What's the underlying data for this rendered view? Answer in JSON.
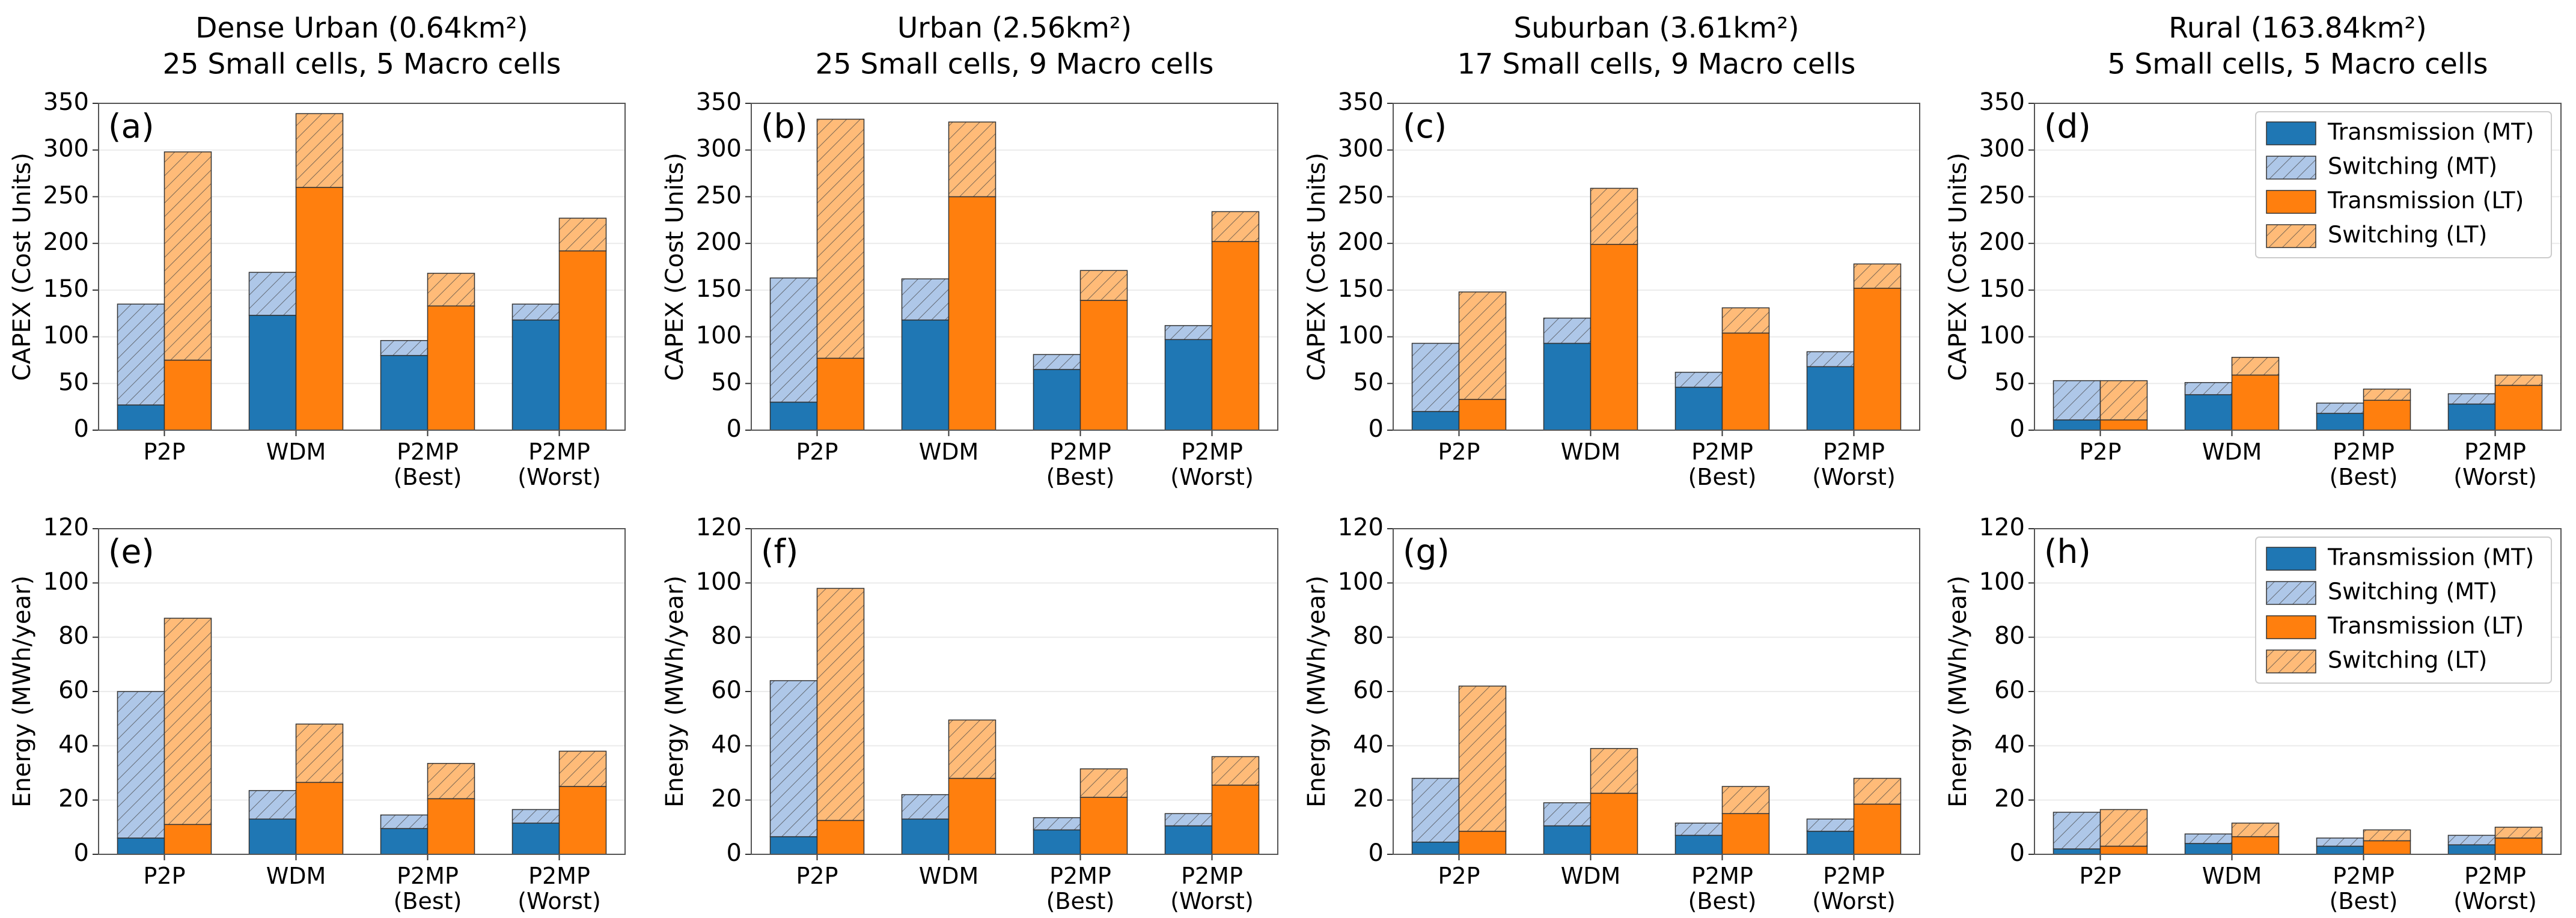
{
  "chart_data": [
    {
      "type": "bar",
      "title": "Dense Urban (0.64km²)",
      "subtitle": "25 Small cells, 5 Macro cells",
      "panel": "(a)",
      "ylabel": "CAPEX (Cost Units)",
      "categories": [
        "P2P",
        "WDM",
        "P2MP (Best)",
        "P2MP (Worst)"
      ],
      "ylim": [
        0,
        350
      ],
      "yticks": [
        0,
        50,
        100,
        150,
        200,
        250,
        300,
        350
      ],
      "grid": true,
      "series": [
        {
          "color": "#1f77b4",
          "hatch": false,
          "values": [
            27,
            123,
            80,
            118
          ]
        },
        {
          "color": "#aec7e8",
          "hatch": true,
          "values": [
            108,
            46,
            16,
            17
          ]
        },
        {
          "color": "#ff7f0e",
          "hatch": false,
          "values": [
            75,
            260,
            133,
            192
          ]
        },
        {
          "color": "#ffbb78",
          "hatch": true,
          "values": [
            223,
            79,
            35,
            35
          ]
        }
      ]
    },
    {
      "type": "bar",
      "title": "Urban (2.56km²)",
      "subtitle": "25 Small cells, 9 Macro cells",
      "panel": "(b)",
      "ylabel": "CAPEX (Cost Units)",
      "categories": [
        "P2P",
        "WDM",
        "P2MP (Best)",
        "P2MP (Worst)"
      ],
      "ylim": [
        0,
        350
      ],
      "yticks": [
        0,
        50,
        100,
        150,
        200,
        250,
        300,
        350
      ],
      "grid": true,
      "series": [
        {
          "color": "#1f77b4",
          "hatch": false,
          "values": [
            30,
            118,
            65,
            97
          ]
        },
        {
          "color": "#aec7e8",
          "hatch": true,
          "values": [
            133,
            44,
            16,
            15
          ]
        },
        {
          "color": "#ff7f0e",
          "hatch": false,
          "values": [
            77,
            250,
            139,
            202
          ]
        },
        {
          "color": "#ffbb78",
          "hatch": true,
          "values": [
            256,
            80,
            32,
            32
          ]
        }
      ]
    },
    {
      "type": "bar",
      "title": "Suburban (3.61km²)",
      "subtitle": "17 Small cells, 9 Macro cells",
      "panel": "(c)",
      "ylabel": "CAPEX (Cost Units)",
      "categories": [
        "P2P",
        "WDM",
        "P2MP (Best)",
        "P2MP (Worst)"
      ],
      "ylim": [
        0,
        350
      ],
      "yticks": [
        0,
        50,
        100,
        150,
        200,
        250,
        300,
        350
      ],
      "grid": true,
      "series": [
        {
          "color": "#1f77b4",
          "hatch": false,
          "values": [
            20,
            93,
            46,
            68
          ]
        },
        {
          "color": "#aec7e8",
          "hatch": true,
          "values": [
            73,
            27,
            16,
            16
          ]
        },
        {
          "color": "#ff7f0e",
          "hatch": false,
          "values": [
            33,
            199,
            104,
            152
          ]
        },
        {
          "color": "#ffbb78",
          "hatch": true,
          "values": [
            115,
            60,
            27,
            26
          ]
        }
      ]
    },
    {
      "type": "bar",
      "title": "Rural (163.84km²)",
      "subtitle": "5 Small cells, 5 Macro cells",
      "panel": "(d)",
      "ylabel": "CAPEX (Cost Units)",
      "categories": [
        "P2P",
        "WDM",
        "P2MP (Best)",
        "P2MP (Worst)"
      ],
      "ylim": [
        0,
        350
      ],
      "yticks": [
        0,
        50,
        100,
        150,
        200,
        250,
        300,
        350
      ],
      "grid": true,
      "legend": "upper right",
      "series": [
        {
          "name": "Transmission (MT)",
          "color": "#1f77b4",
          "hatch": false,
          "values": [
            11,
            38,
            18,
            28
          ]
        },
        {
          "name": "Switching (MT)",
          "color": "#aec7e8",
          "hatch": true,
          "values": [
            42,
            13,
            11,
            11
          ]
        },
        {
          "name": "Transmission (LT)",
          "color": "#ff7f0e",
          "hatch": false,
          "values": [
            11,
            59,
            32,
            48
          ]
        },
        {
          "name": "Switching (LT)",
          "color": "#ffbb78",
          "hatch": true,
          "values": [
            42,
            19,
            12,
            11
          ]
        }
      ]
    },
    {
      "type": "bar",
      "panel": "(e)",
      "ylabel": "Energy (MWh/year)",
      "categories": [
        "P2P",
        "WDM",
        "P2MP (Best)",
        "P2MP (Worst)"
      ],
      "ylim": [
        0,
        120
      ],
      "yticks": [
        0,
        20,
        40,
        60,
        80,
        100,
        120
      ],
      "grid": true,
      "series": [
        {
          "color": "#1f77b4",
          "hatch": false,
          "values": [
            6,
            13,
            9.5,
            11.5
          ]
        },
        {
          "color": "#aec7e8",
          "hatch": true,
          "values": [
            54,
            10.5,
            5,
            5
          ]
        },
        {
          "color": "#ff7f0e",
          "hatch": false,
          "values": [
            11,
            26.5,
            20.5,
            25
          ]
        },
        {
          "color": "#ffbb78",
          "hatch": true,
          "values": [
            76,
            21.5,
            13,
            13
          ]
        }
      ]
    },
    {
      "type": "bar",
      "panel": "(f)",
      "ylabel": "Energy (MWh/year)",
      "categories": [
        "P2P",
        "WDM",
        "P2MP (Best)",
        "P2MP (Worst)"
      ],
      "ylim": [
        0,
        120
      ],
      "yticks": [
        0,
        20,
        40,
        60,
        80,
        100,
        120
      ],
      "grid": true,
      "series": [
        {
          "color": "#1f77b4",
          "hatch": false,
          "values": [
            6.5,
            13,
            9,
            10.5
          ]
        },
        {
          "color": "#aec7e8",
          "hatch": true,
          "values": [
            57.5,
            9,
            4.5,
            4.5
          ]
        },
        {
          "color": "#ff7f0e",
          "hatch": false,
          "values": [
            12.5,
            28,
            21,
            25.5
          ]
        },
        {
          "color": "#ffbb78",
          "hatch": true,
          "values": [
            85.5,
            21.5,
            10.5,
            10.5
          ]
        }
      ]
    },
    {
      "type": "bar",
      "panel": "(g)",
      "ylabel": "Energy (MWh/year)",
      "categories": [
        "P2P",
        "WDM",
        "P2MP (Best)",
        "P2MP (Worst)"
      ],
      "ylim": [
        0,
        120
      ],
      "yticks": [
        0,
        20,
        40,
        60,
        80,
        100,
        120
      ],
      "grid": true,
      "series": [
        {
          "color": "#1f77b4",
          "hatch": false,
          "values": [
            4.5,
            10.5,
            7,
            8.5
          ]
        },
        {
          "color": "#aec7e8",
          "hatch": true,
          "values": [
            23.5,
            8.5,
            4.5,
            4.5
          ]
        },
        {
          "color": "#ff7f0e",
          "hatch": false,
          "values": [
            8.5,
            22.5,
            15,
            18.5
          ]
        },
        {
          "color": "#ffbb78",
          "hatch": true,
          "values": [
            53.5,
            16.5,
            10,
            9.5
          ]
        }
      ]
    },
    {
      "type": "bar",
      "panel": "(h)",
      "ylabel": "Energy (MWh/year)",
      "categories": [
        "P2P",
        "WDM",
        "P2MP (Best)",
        "P2MP (Worst)"
      ],
      "ylim": [
        0,
        120
      ],
      "yticks": [
        0,
        20,
        40,
        60,
        80,
        100,
        120
      ],
      "grid": true,
      "legend": "upper right",
      "series": [
        {
          "name": "Transmission (MT)",
          "color": "#1f77b4",
          "hatch": false,
          "values": [
            2,
            4,
            3,
            3.5
          ]
        },
        {
          "name": "Switching (MT)",
          "color": "#aec7e8",
          "hatch": true,
          "values": [
            13.5,
            3.5,
            3,
            3.5
          ]
        },
        {
          "name": "Transmission (LT)",
          "color": "#ff7f0e",
          "hatch": false,
          "values": [
            3,
            6.5,
            5,
            6
          ]
        },
        {
          "name": "Switching (LT)",
          "color": "#ffbb78",
          "hatch": true,
          "values": [
            13.5,
            5,
            4,
            4
          ]
        }
      ]
    }
  ]
}
